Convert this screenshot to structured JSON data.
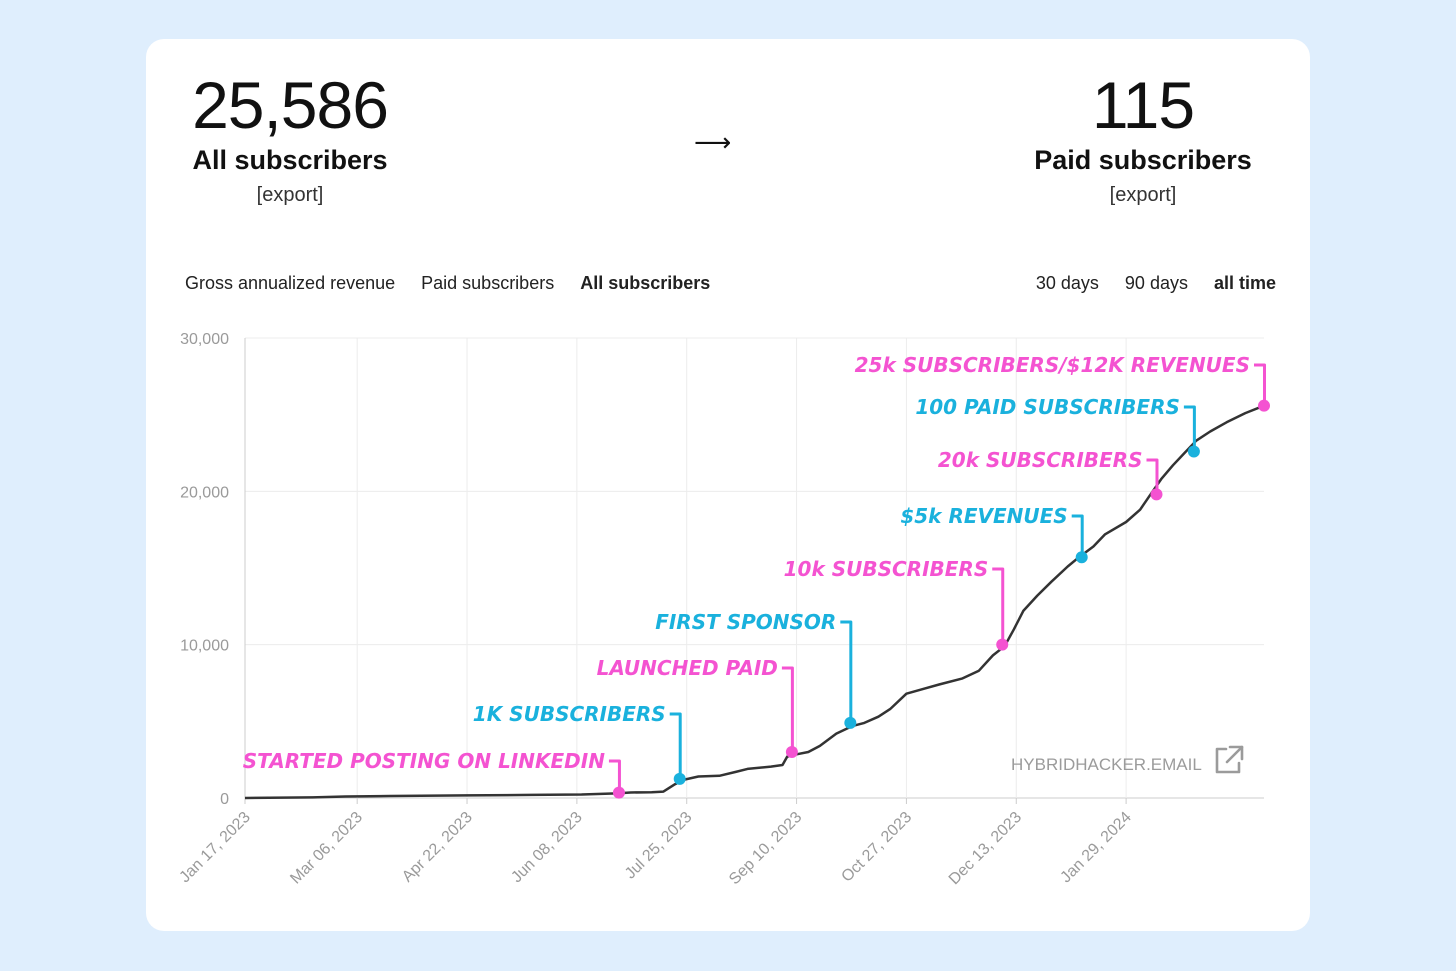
{
  "stats": {
    "all": {
      "value": "25,586",
      "label": "All subscribers",
      "export": "[export]"
    },
    "arrow": "⟶",
    "paid": {
      "value": "115",
      "label": "Paid subscribers",
      "export": "[export]"
    }
  },
  "metric_tabs": [
    "Gross annualized revenue",
    "Paid subscribers",
    "All subscribers"
  ],
  "metric_active": "All subscribers",
  "range_tabs": [
    "30 days",
    "90 days",
    "all time"
  ],
  "range_active": "all time",
  "watermark": "HYBRIDHACKER.EMAIL",
  "colors": {
    "pink": "#f453d1",
    "blue": "#1ab1dd",
    "line": "#333333",
    "grid": "#ececec"
  },
  "chart_data": {
    "type": "line",
    "title": "",
    "xlabel": "",
    "ylabel": "",
    "ylim": [
      0,
      30000
    ],
    "y_ticks": [
      {
        "value": 0,
        "label": "0"
      },
      {
        "value": 10000,
        "label": "10,000"
      },
      {
        "value": 20000,
        "label": "20,000"
      },
      {
        "value": 30000,
        "label": "30,000"
      }
    ],
    "x_start": "2023-01-17",
    "x_end": "2024-03-28",
    "x_ticks": [
      {
        "date": "2023-01-17",
        "label": "Jan 17, 2023"
      },
      {
        "date": "2023-03-06",
        "label": "Mar 06, 2023"
      },
      {
        "date": "2023-04-22",
        "label": "Apr 22, 2023"
      },
      {
        "date": "2023-06-08",
        "label": "Jun 08, 2023"
      },
      {
        "date": "2023-07-25",
        "label": "Jul 25, 2023"
      },
      {
        "date": "2023-09-10",
        "label": "Sep 10, 2023"
      },
      {
        "date": "2023-10-27",
        "label": "Oct 27, 2023"
      },
      {
        "date": "2023-12-13",
        "label": "Dec 13, 2023"
      },
      {
        "date": "2024-01-29",
        "label": "Jan 29, 2024"
      }
    ],
    "grid": true,
    "series": [
      {
        "name": "",
        "points": [
          [
            "2023-01-17",
            0
          ],
          [
            "2023-02-15",
            40
          ],
          [
            "2023-03-01",
            100
          ],
          [
            "2023-03-20",
            130
          ],
          [
            "2023-04-22",
            170
          ],
          [
            "2023-05-20",
            200
          ],
          [
            "2023-06-10",
            230
          ],
          [
            "2023-06-25",
            300
          ],
          [
            "2023-07-01",
            360
          ],
          [
            "2023-07-10",
            380
          ],
          [
            "2023-07-15",
            420
          ],
          [
            "2023-07-20",
            900
          ],
          [
            "2023-07-24",
            1200
          ],
          [
            "2023-07-30",
            1400
          ],
          [
            "2023-08-08",
            1450
          ],
          [
            "2023-08-15",
            1700
          ],
          [
            "2023-08-20",
            1900
          ],
          [
            "2023-08-30",
            2050
          ],
          [
            "2023-09-04",
            2150
          ],
          [
            "2023-09-06",
            2700
          ],
          [
            "2023-09-10",
            2850
          ],
          [
            "2023-09-15",
            3000
          ],
          [
            "2023-09-20",
            3400
          ],
          [
            "2023-09-27",
            4200
          ],
          [
            "2023-10-04",
            4700
          ],
          [
            "2023-10-09",
            4900
          ],
          [
            "2023-10-15",
            5300
          ],
          [
            "2023-10-20",
            5800
          ],
          [
            "2023-10-27",
            6800
          ],
          [
            "2023-11-03",
            7100
          ],
          [
            "2023-11-10",
            7400
          ],
          [
            "2023-11-20",
            7800
          ],
          [
            "2023-11-27",
            8300
          ],
          [
            "2023-12-03",
            9300
          ],
          [
            "2023-12-08",
            9900
          ],
          [
            "2023-12-12",
            11000
          ],
          [
            "2023-12-16",
            12200
          ],
          [
            "2023-12-22",
            13200
          ],
          [
            "2023-12-28",
            14100
          ],
          [
            "2024-01-04",
            15100
          ],
          [
            "2024-01-08",
            15600
          ],
          [
            "2024-01-15",
            16400
          ],
          [
            "2024-01-20",
            17200
          ],
          [
            "2024-01-29",
            18000
          ],
          [
            "2024-02-04",
            18800
          ],
          [
            "2024-02-08",
            19700
          ],
          [
            "2024-02-13",
            20800
          ],
          [
            "2024-02-18",
            21700
          ],
          [
            "2024-02-23",
            22500
          ],
          [
            "2024-02-28",
            23300
          ],
          [
            "2024-03-05",
            23900
          ],
          [
            "2024-03-12",
            24500
          ],
          [
            "2024-03-20",
            25100
          ],
          [
            "2024-03-28",
            25586
          ]
        ]
      }
    ],
    "annotations": [
      {
        "text": "STARTED POSTING ON LINKEDIN",
        "date": "2023-06-26",
        "value": 350,
        "color": "pink"
      },
      {
        "text": "1K SUBSCRIBERS",
        "date": "2023-07-22",
        "value": 1250,
        "color": "blue"
      },
      {
        "text": "LAUNCHED PAID",
        "date": "2023-09-08",
        "value": 3000,
        "color": "pink"
      },
      {
        "text": "FIRST SPONSOR",
        "date": "2023-10-03",
        "value": 4900,
        "color": "blue"
      },
      {
        "text": "10k SUBSCRIBERS",
        "date": "2023-12-07",
        "value": 10000,
        "color": "pink"
      },
      {
        "text": "$5k REVENUES",
        "date": "2024-01-10",
        "value": 15700,
        "color": "blue"
      },
      {
        "text": "20k SUBSCRIBERS",
        "date": "2024-02-11",
        "value": 19800,
        "color": "pink"
      },
      {
        "text": "100 PAID SUBSCRIBERS",
        "date": "2024-02-27",
        "value": 22600,
        "color": "blue"
      },
      {
        "text": "25k SUBSCRIBERS/$12K REVENUES",
        "date": "2024-03-28",
        "value": 25586,
        "color": "pink"
      }
    ]
  }
}
